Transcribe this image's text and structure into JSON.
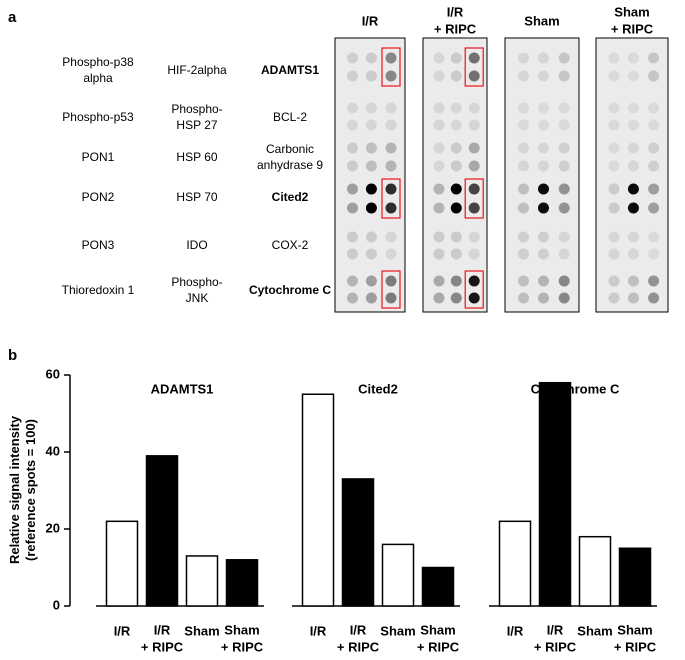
{
  "panel_a": {
    "label": "a",
    "array_headers": [
      "I/R",
      "I/R\n+ RIPC",
      "Sham",
      "Sham\n+ RIPC"
    ],
    "rows": [
      [
        {
          "label": "Phospho-p38\nalpha",
          "color": "#000000"
        },
        {
          "label": "HIF-2alpha",
          "color": "#000000"
        },
        {
          "label": "ADAMTS1",
          "color": "#e8141b"
        }
      ],
      [
        {
          "label": "Phospho-p53",
          "color": "#000000"
        },
        {
          "label": "Phospho-\nHSP 27",
          "color": "#000000"
        },
        {
          "label": "BCL-2",
          "color": "#000000"
        }
      ],
      [
        {
          "label": "PON1",
          "color": "#000000"
        },
        {
          "label": "HSP 60",
          "color": "#000000"
        },
        {
          "label": "Carbonic\nanhydrase 9",
          "color": "#000000"
        }
      ],
      [
        {
          "label": "PON2",
          "color": "#000000"
        },
        {
          "label": "HSP 70",
          "color": "#000000"
        },
        {
          "label": "Cited2",
          "color": "#e8141b"
        }
      ],
      [
        {
          "label": "PON3",
          "color": "#000000"
        },
        {
          "label": "IDO",
          "color": "#000000"
        },
        {
          "label": "COX-2",
          "color": "#000000"
        }
      ],
      [
        {
          "label": "Thioredoxin 1",
          "color": "#000000"
        },
        {
          "label": "Phospho-\nJNK",
          "color": "#000000"
        },
        {
          "label": "Cytochrome C",
          "color": "#e8141b"
        }
      ]
    ]
  },
  "panel_b_label": "b",
  "chart_data": [
    {
      "type": "bar",
      "title": "ADAMTS1",
      "ylabel": "Relative signal intensity\n(reference spots = 100)",
      "categories": [
        "I/R",
        "I/R\n+ RIPC",
        "Sham",
        "Sham\n+ RIPC"
      ],
      "values": [
        22,
        39,
        13,
        12
      ],
      "colors": [
        "#ffffff",
        "#000000",
        "#ffffff",
        "#000000"
      ],
      "ylim": [
        0,
        60
      ],
      "yticks": [
        0,
        20,
        40,
        60
      ]
    },
    {
      "type": "bar",
      "title": "Cited2",
      "categories": [
        "I/R",
        "I/R\n+ RIPC",
        "Sham",
        "Sham\n+ RIPC"
      ],
      "values": [
        55,
        33,
        16,
        10
      ],
      "colors": [
        "#ffffff",
        "#000000",
        "#ffffff",
        "#000000"
      ]
    },
    {
      "type": "bar",
      "title": "Cytochrome C",
      "categories": [
        "I/R",
        "I/R\n+ RIPC",
        "Sham",
        "Sham\n+ RIPC"
      ],
      "values": [
        22,
        58,
        18,
        15
      ],
      "colors": [
        "#ffffff",
        "#000000",
        "#ffffff",
        "#000000"
      ]
    }
  ]
}
